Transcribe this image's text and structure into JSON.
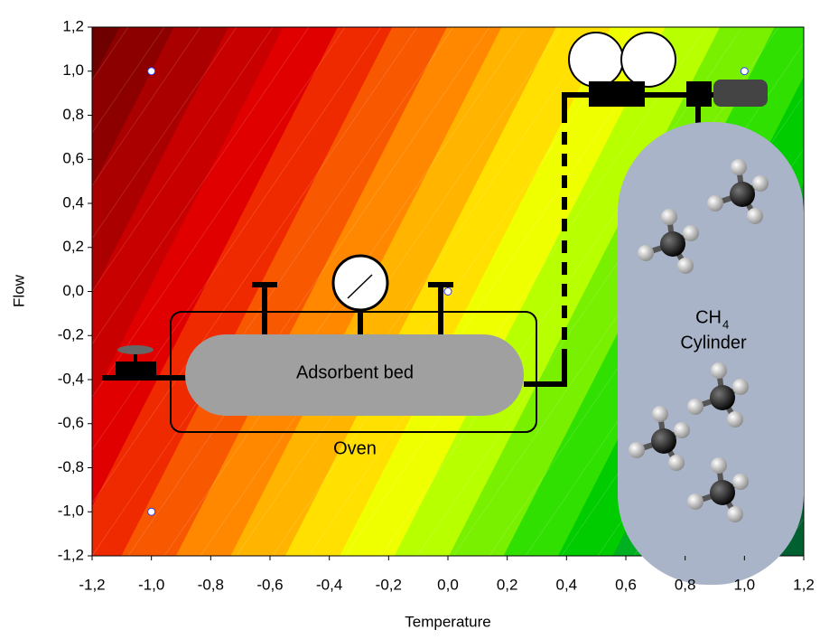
{
  "chart_data": {
    "type": "contour",
    "x_label": "Temperature",
    "y_label": "Flow",
    "xlim": [
      -1.2,
      1.2
    ],
    "ylim": [
      -1.2,
      1.2
    ],
    "xticks": [
      {
        "value": -1.2,
        "label": "-1,2"
      },
      {
        "value": -1,
        "label": "-1,0"
      },
      {
        "value": -0.8,
        "label": "-0,8"
      },
      {
        "value": -0.6,
        "label": "-0,6"
      },
      {
        "value": -0.4,
        "label": "-0,4"
      },
      {
        "value": -0.2,
        "label": "-0,2"
      },
      {
        "value": 0,
        "label": "0,0"
      },
      {
        "value": 0.2,
        "label": "0,2"
      },
      {
        "value": 0.4,
        "label": "0,4"
      },
      {
        "value": 0.6,
        "label": "0,6"
      },
      {
        "value": 0.8,
        "label": "0,8"
      },
      {
        "value": 1,
        "label": "1,0"
      },
      {
        "value": 1.2,
        "label": "1,2"
      }
    ],
    "yticks": [
      {
        "value": -1.2,
        "label": "-1,2"
      },
      {
        "value": -1,
        "label": "-1,0"
      },
      {
        "value": -0.8,
        "label": "-0,8"
      },
      {
        "value": -0.6,
        "label": "-0,6"
      },
      {
        "value": -0.4,
        "label": "-0,4"
      },
      {
        "value": -0.2,
        "label": "-0,2"
      },
      {
        "value": 0,
        "label": "0,0"
      },
      {
        "value": 0.2,
        "label": "0,2"
      },
      {
        "value": 0.4,
        "label": "0,4"
      },
      {
        "value": 0.6,
        "label": "0,6"
      },
      {
        "value": 0.8,
        "label": "0,8"
      },
      {
        "value": 1,
        "label": "1,0"
      },
      {
        "value": 1.2,
        "label": "1,2"
      }
    ],
    "band_colors": [
      "#6e0000",
      "#8c0000",
      "#aa0000",
      "#c80000",
      "#e00000",
      "#f02a00",
      "#f85800",
      "#ff8800",
      "#ffb400",
      "#ffe000",
      "#f0ff00",
      "#b8ff00",
      "#78f000",
      "#30e000",
      "#00cc00",
      "#00b020",
      "#00962e",
      "#007a32",
      "#006030"
    ],
    "points": {
      "x": [
        -1,
        -1,
        0,
        1
      ],
      "values": [
        1,
        -1,
        0,
        1
      ],
      "color": "#ffffff"
    },
    "annotations": [
      "Adsorbent bed",
      "Oven",
      "CH",
      "4",
      "Cylinder"
    ]
  }
}
